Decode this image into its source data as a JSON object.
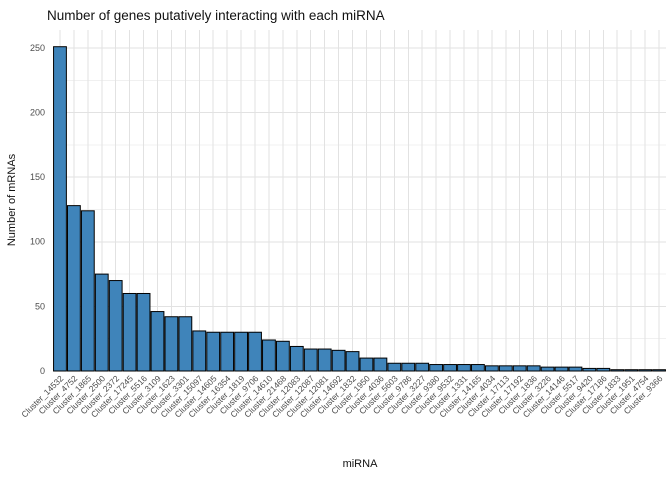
{
  "figure": {
    "background": "#ffffff"
  },
  "chart_data": {
    "type": "bar",
    "title": "Number of genes putatively interacting with each miRNA",
    "xlabel": "miRNA",
    "ylabel": "Number of mRNAs",
    "categories": [
      "Cluster_14532",
      "Cluster_4752",
      "Cluster_1865",
      "Cluster_2500",
      "Cluster_2372",
      "Cluster_17245",
      "Cluster_5516",
      "Cluster_3109",
      "Cluster_1623",
      "Cluster_3301",
      "Cluster_15097",
      "Cluster_14605",
      "Cluster_16354",
      "Cluster_1819",
      "Cluster_9706",
      "Cluster_14610",
      "Cluster_21468",
      "Cluster_12083",
      "Cluster_12087",
      "Cluster_12081",
      "Cluster_14692",
      "Cluster_1832",
      "Cluster_1950",
      "Cluster_4036",
      "Cluster_5603",
      "Cluster_9786",
      "Cluster_3227",
      "Cluster_9380",
      "Cluster_9532",
      "Cluster_1331",
      "Cluster_14165",
      "Cluster_4034",
      "Cluster_17113",
      "Cluster_17192",
      "Cluster_1836",
      "Cluster_3226",
      "Cluster_14146",
      "Cluster_5517",
      "Cluster_9420",
      "Cluster_17186",
      "Cluster_1833",
      "Cluster_1951",
      "Cluster_4754",
      "Cluster_9366"
    ],
    "values": [
      251,
      128,
      124,
      75,
      70,
      60,
      60,
      46,
      42,
      42,
      31,
      30,
      30,
      30,
      30,
      24,
      23,
      19,
      17,
      17,
      16,
      15,
      10,
      10,
      6,
      6,
      6,
      5,
      5,
      5,
      5,
      4,
      4,
      4,
      4,
      3,
      3,
      3,
      2,
      2,
      1,
      1,
      1,
      1
    ],
    "ylim": [
      0,
      250
    ],
    "yticks_major": [
      0,
      50,
      100,
      150,
      200,
      250
    ],
    "yticks_minor": [
      25,
      75,
      125,
      175,
      225
    ],
    "grid": "on",
    "legend": "none",
    "bar_fill": "#3f84ba",
    "bar_stroke": "#000000",
    "grid_major_color": "#e2e2e2",
    "grid_minor_color": "#f0f0f0",
    "axis_text_color": "#4d4d4d",
    "title_color": "#111111"
  }
}
